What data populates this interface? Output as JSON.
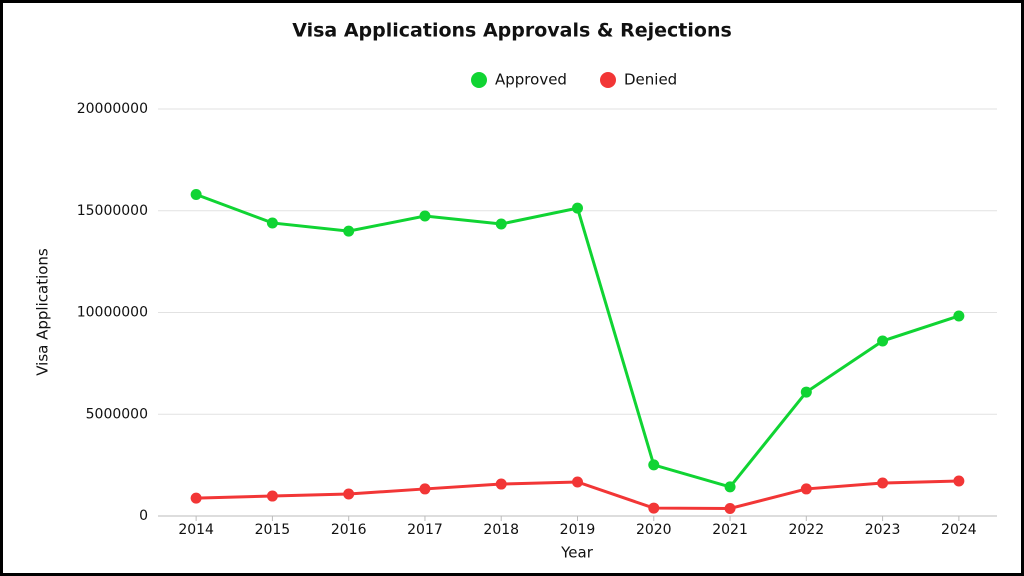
{
  "chart_data": {
    "type": "line",
    "title": "Visa Applications Approvals & Rejections",
    "x_label": "Year",
    "y_label": "Visa Applications",
    "categories": [
      "2014",
      "2015",
      "2016",
      "2017",
      "2018",
      "2019",
      "2020",
      "2021",
      "2022",
      "2023",
      "2024"
    ],
    "series": [
      {
        "name": "Approved",
        "color": "#10d433",
        "values": [
          15800000,
          14400000,
          14000000,
          14740000,
          14350000,
          15130000,
          2510000,
          1430000,
          6090000,
          8600000,
          9830000
        ]
      },
      {
        "name": "Denied",
        "color": "#f23636",
        "values": [
          880000,
          980000,
          1080000,
          1330000,
          1570000,
          1670000,
          390000,
          370000,
          1330000,
          1620000,
          1720000
        ]
      }
    ],
    "ylim": [
      0,
      20000000
    ],
    "yticks": [
      0,
      5000000,
      10000000,
      15000000,
      20000000
    ],
    "grid": true
  }
}
